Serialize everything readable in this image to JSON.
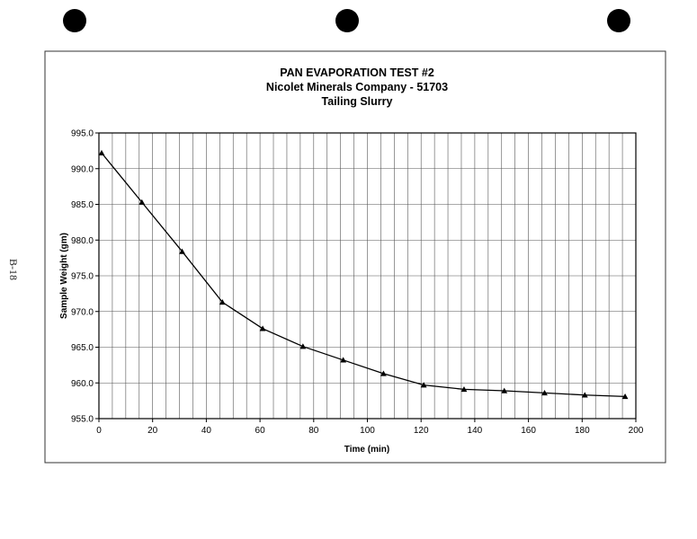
{
  "page": {
    "page_number": "B-18"
  },
  "chart_data": {
    "type": "line",
    "title": [
      "PAN EVAPORATION TEST #2",
      "Nicolet Minerals Company - 51703",
      "Tailing Slurry"
    ],
    "xlabel": "Time (min)",
    "ylabel": "Sample Weight (gm)",
    "xlim": [
      0,
      200
    ],
    "ylim": [
      955.0,
      995.0
    ],
    "x_ticks": [
      0,
      20,
      40,
      60,
      80,
      100,
      120,
      140,
      160,
      180,
      200
    ],
    "y_ticks": [
      "955.0",
      "960.0",
      "965.0",
      "970.0",
      "975.0",
      "980.0",
      "985.0",
      "990.0",
      "995.0"
    ],
    "grid": true,
    "marker": "triangle",
    "series": [
      {
        "x": [
          1,
          16,
          31,
          46,
          61,
          76,
          91,
          106,
          121,
          136,
          151,
          166,
          181,
          196
        ],
        "y": [
          992.2,
          985.3,
          978.4,
          971.3,
          967.6,
          965.1,
          963.2,
          961.3,
          959.7,
          959.1,
          958.9,
          958.6,
          958.3,
          958.1
        ]
      }
    ]
  }
}
